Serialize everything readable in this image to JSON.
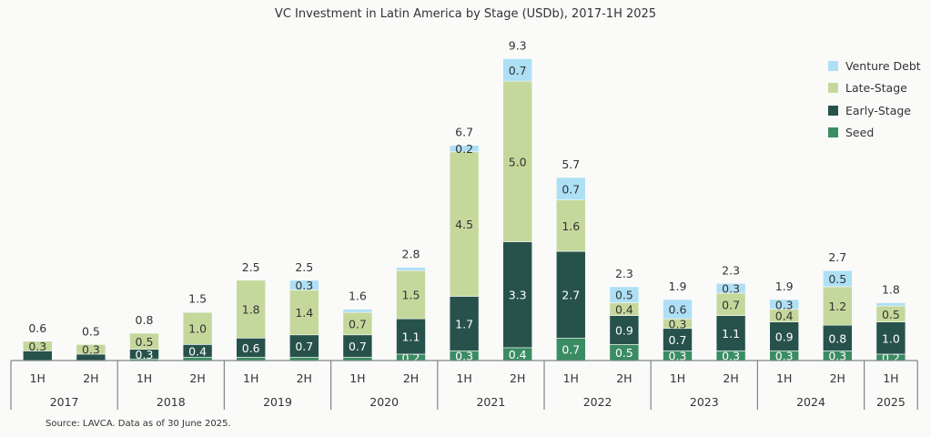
{
  "chart_data": {
    "type": "bar",
    "stacked": true,
    "title": "VC Investment in Latin America by Stage (USDb), 2017-1H 2025",
    "source": "Source: LAVCA. Data as of 30 June 2025.",
    "years": [
      "2017",
      "2018",
      "2019",
      "2020",
      "2021",
      "2022",
      "2023",
      "2024",
      "2025"
    ],
    "categories": [
      "1H",
      "2H",
      "1H",
      "2H",
      "1H",
      "2H",
      "1H",
      "2H",
      "1H",
      "2H",
      "1H",
      "2H",
      "1H",
      "2H",
      "1H",
      "2H",
      "1H"
    ],
    "category_years": [
      "2017",
      "2017",
      "2018",
      "2018",
      "2019",
      "2019",
      "2020",
      "2020",
      "2021",
      "2021",
      "2022",
      "2022",
      "2023",
      "2023",
      "2024",
      "2024",
      "2025"
    ],
    "totals": [
      "0.6",
      "0.5",
      "0.8",
      "1.5",
      "2.5",
      "2.5",
      "1.6",
      "2.8",
      "6.7",
      "9.3",
      "5.7",
      "2.3",
      "1.9",
      "2.3",
      "1.9",
      "2.7",
      "1.8"
    ],
    "series": [
      {
        "name": "Seed",
        "color": "#3a8c63",
        "values": [
          0.0,
          0.0,
          0.05,
          0.1,
          0.1,
          0.1,
          0.1,
          0.2,
          0.3,
          0.4,
          0.7,
          0.5,
          0.3,
          0.3,
          0.3,
          0.3,
          0.2
        ],
        "labels": [
          null,
          null,
          null,
          null,
          null,
          null,
          null,
          "0.2",
          "0.3",
          "0.4",
          "0.7",
          "0.5",
          "0.3",
          "0.3",
          "0.3",
          "0.3",
          "0.2"
        ],
        "label_color": "#ffffff"
      },
      {
        "name": "Early-Stage",
        "color": "#27524b",
        "values": [
          0.3,
          0.2,
          0.3,
          0.4,
          0.6,
          0.7,
          0.7,
          1.1,
          1.7,
          3.3,
          2.7,
          0.9,
          0.7,
          1.1,
          0.9,
          0.8,
          1.0
        ],
        "labels": [
          null,
          null,
          "0.3",
          "0.4",
          "0.6",
          "0.7",
          "0.7",
          "1.1",
          "1.7",
          "3.3",
          "2.7",
          "0.9",
          "0.7",
          "1.1",
          "0.9",
          "0.8",
          "1.0"
        ],
        "label_color": "#ffffff"
      },
      {
        "name": "Late-Stage",
        "color": "#c5d89c",
        "values": [
          0.3,
          0.3,
          0.5,
          1.0,
          1.8,
          1.4,
          0.7,
          1.5,
          4.5,
          5.0,
          1.6,
          0.4,
          0.3,
          0.7,
          0.4,
          1.2,
          0.5
        ],
        "labels": [
          "0.3",
          "0.3",
          "0.5",
          "1.0",
          "1.8",
          "1.4",
          "0.7",
          "1.5",
          "4.5",
          "5.0",
          "1.6",
          "0.4",
          "0.3",
          "0.7",
          "0.4",
          "1.2",
          "0.5"
        ],
        "label_color": "#333333"
      },
      {
        "name": "Venture Debt",
        "color": "#aee0f5",
        "values": [
          0.0,
          0.0,
          0.0,
          0.02,
          0.0,
          0.3,
          0.1,
          0.1,
          0.2,
          0.7,
          0.7,
          0.5,
          0.6,
          0.3,
          0.3,
          0.5,
          0.1
        ],
        "labels": [
          null,
          null,
          null,
          null,
          null,
          "0.3",
          null,
          null,
          "0.2",
          "0.7",
          "0.7",
          "0.5",
          "0.6",
          "0.3",
          "0.3",
          "0.5",
          null
        ],
        "label_color": "#333333"
      }
    ],
    "ylim": [
      0,
      9.6
    ],
    "legend": "top-right",
    "grid": false
  }
}
